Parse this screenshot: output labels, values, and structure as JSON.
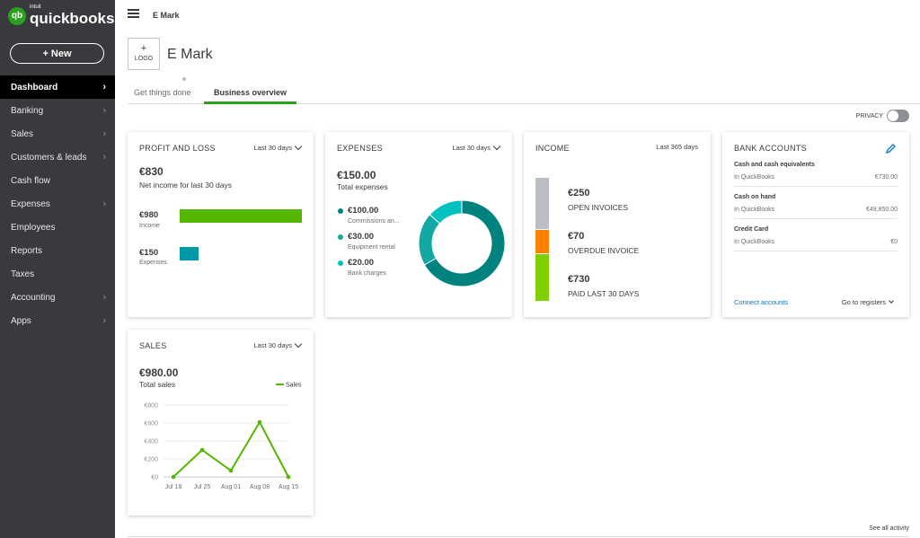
{
  "app": {
    "brand": "quickbooks",
    "brand_super": "intuit",
    "logo_glyph": "qb"
  },
  "sidebar": {
    "new_label": "+  New",
    "items": [
      {
        "label": "Dashboard",
        "active": true,
        "chevron": true
      },
      {
        "label": "Banking",
        "chevron": true
      },
      {
        "label": "Sales",
        "chevron": true
      },
      {
        "label": "Customers & leads",
        "chevron": true
      },
      {
        "label": "Cash flow",
        "chevron": false
      },
      {
        "label": "Expenses",
        "chevron": true
      },
      {
        "label": "Employees",
        "chevron": false
      },
      {
        "label": "Reports",
        "chevron": false
      },
      {
        "label": "Taxes",
        "chevron": false
      },
      {
        "label": "Accounting",
        "chevron": true
      },
      {
        "label": "Apps",
        "chevron": true
      }
    ]
  },
  "header": {
    "company": "E Mark",
    "logo_plus": "+",
    "logo_label": "LOGO",
    "company_title": "E Mark"
  },
  "tabs": [
    {
      "label": "Get things done"
    },
    {
      "label": "Business overview",
      "active": true
    }
  ],
  "privacy": {
    "label": "PRIVACY",
    "on": false
  },
  "pnl": {
    "title": "PROFIT AND LOSS",
    "period": "Last 30 days",
    "net": "€830",
    "net_label": "Net income for last 30 days",
    "income": "€980",
    "income_label": "Income",
    "expenses": "€150",
    "expenses_label": "Expenses",
    "income_value": 980,
    "expenses_value": 150,
    "income_color": "#53b700",
    "expenses_color": "#0097a7"
  },
  "expenses": {
    "title": "EXPENSES",
    "period": "Last 30 days",
    "total": "€150.00",
    "total_label": "Total expenses",
    "items": [
      {
        "amount": "€100.00",
        "label": "Commissions an...",
        "value": 100,
        "color": "#00827f"
      },
      {
        "amount": "€30.00",
        "label": "Equipment rental",
        "value": 30,
        "color": "#14a8a3"
      },
      {
        "amount": "€20.00",
        "label": "Bank charges",
        "value": 20,
        "color": "#00c1bf"
      }
    ]
  },
  "income": {
    "title": "INCOME",
    "period": "Last 365 days",
    "items": [
      {
        "amount": "€250",
        "label": "OPEN INVOICES",
        "value": 250,
        "color": "#babec5"
      },
      {
        "amount": "€70",
        "label": "OVERDUE INVOICE",
        "value": 70,
        "color": "#ff8000"
      },
      {
        "amount": "€730",
        "label": "PAID LAST 30 DAYS",
        "value": 730,
        "color": "#7fd000"
      }
    ]
  },
  "bank": {
    "title": "BANK ACCOUNTS",
    "accounts": [
      {
        "name": "Cash and cash equivalents",
        "source": "In QuickBooks",
        "balance": "€730.00"
      },
      {
        "name": "Cash on hand",
        "source": "In QuickBooks",
        "balance": "€49,850.00"
      },
      {
        "name": "Credit Card",
        "source": "In QuickBooks",
        "balance": "€0"
      }
    ],
    "connect": "Connect accounts",
    "registers": "Go to registers"
  },
  "sales": {
    "title": "SALES",
    "period": "Last 30 days",
    "total": "€980.00",
    "total_label": "Total sales"
  },
  "chart_data": {
    "type": "line",
    "categories": [
      "Jul 18",
      "Jul 25",
      "Aug 01",
      "Aug 08",
      "Aug 15"
    ],
    "series": [
      {
        "name": "Sales",
        "values": [
          0,
          300,
          70,
          610,
          0
        ],
        "color": "#53b700"
      }
    ],
    "yticks": [
      "€0",
      "€200",
      "€400",
      "€600",
      "€800"
    ],
    "ylim": [
      0,
      800
    ],
    "grid": true,
    "legend": "top-right"
  },
  "footer": {
    "see_all": "See all activity"
  }
}
